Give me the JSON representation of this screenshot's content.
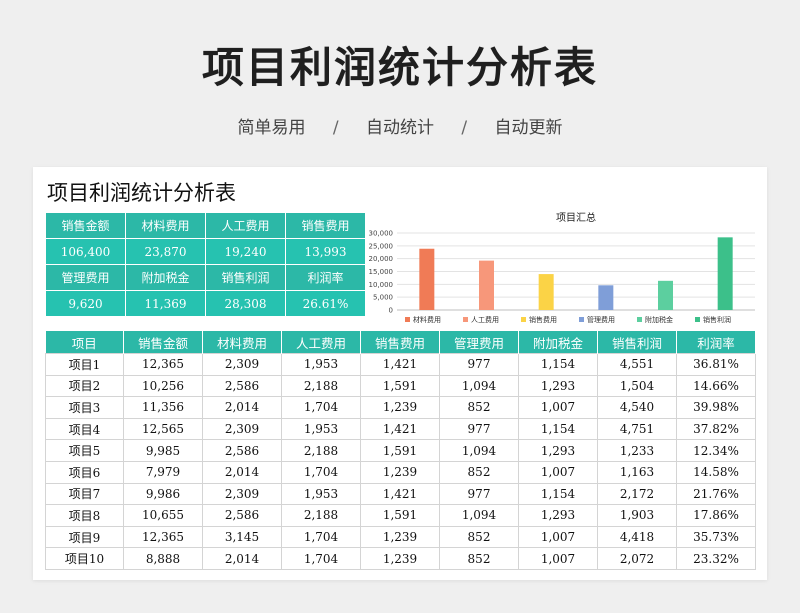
{
  "header": {
    "title": "项目利润统计分析表",
    "tags": [
      "简单易用",
      "自动统计",
      "自动更新"
    ],
    "separator": "/"
  },
  "sheet": {
    "title": "项目利润统计分析表"
  },
  "summary": {
    "row1_labels": [
      "销售金额",
      "材料费用",
      "人工费用",
      "销售费用"
    ],
    "row1_values": [
      "106,400",
      "23,870",
      "19,240",
      "13,993"
    ],
    "row2_labels": [
      "管理费用",
      "附加税金",
      "销售利润",
      "利润率"
    ],
    "row2_values": [
      "9,620",
      "11,369",
      "28,308",
      "26.61%"
    ]
  },
  "chart_data": {
    "type": "bar",
    "title": "项目汇总",
    "categories": [
      "材料费用",
      "人工费用",
      "销售费用",
      "管理费用",
      "附加税金",
      "销售利润"
    ],
    "values": [
      23870,
      19240,
      13993,
      9620,
      11369,
      28308
    ],
    "colors": [
      "#f07b56",
      "#f7977a",
      "#fbd346",
      "#7f9ed8",
      "#5ccf9f",
      "#3cc08a"
    ],
    "ylim": [
      0,
      30000
    ],
    "yticks": [
      "0",
      "5,000",
      "10,000",
      "15,000",
      "20,000",
      "25,000",
      "30,000"
    ],
    "legend": "bottom"
  },
  "table": {
    "columns": [
      "项目",
      "销售金额",
      "材料费用",
      "人工费用",
      "销售费用",
      "管理费用",
      "附加税金",
      "销售利润",
      "利润率"
    ],
    "rows": [
      [
        "项目1",
        "12,365",
        "2,309",
        "1,953",
        "1,421",
        "977",
        "1,154",
        "4,551",
        "36.81%"
      ],
      [
        "项目2",
        "10,256",
        "2,586",
        "2,188",
        "1,591",
        "1,094",
        "1,293",
        "1,504",
        "14.66%"
      ],
      [
        "项目3",
        "11,356",
        "2,014",
        "1,704",
        "1,239",
        "852",
        "1,007",
        "4,540",
        "39.98%"
      ],
      [
        "项目4",
        "12,565",
        "2,309",
        "1,953",
        "1,421",
        "977",
        "1,154",
        "4,751",
        "37.82%"
      ],
      [
        "项目5",
        "9,985",
        "2,586",
        "2,188",
        "1,591",
        "1,094",
        "1,293",
        "1,233",
        "12.34%"
      ],
      [
        "项目6",
        "7,979",
        "2,014",
        "1,704",
        "1,239",
        "852",
        "1,007",
        "1,163",
        "14.58%"
      ],
      [
        "项目7",
        "9,986",
        "2,309",
        "1,953",
        "1,421",
        "977",
        "1,154",
        "2,172",
        "21.76%"
      ],
      [
        "项目8",
        "10,655",
        "2,586",
        "2,188",
        "1,591",
        "1,094",
        "1,293",
        "1,903",
        "17.86%"
      ],
      [
        "项目9",
        "12,365",
        "3,145",
        "1,704",
        "1,239",
        "852",
        "1,007",
        "4,418",
        "35.73%"
      ],
      [
        "项目10",
        "8,888",
        "2,014",
        "1,704",
        "1,239",
        "852",
        "1,007",
        "2,072",
        "23.32%"
      ]
    ]
  }
}
